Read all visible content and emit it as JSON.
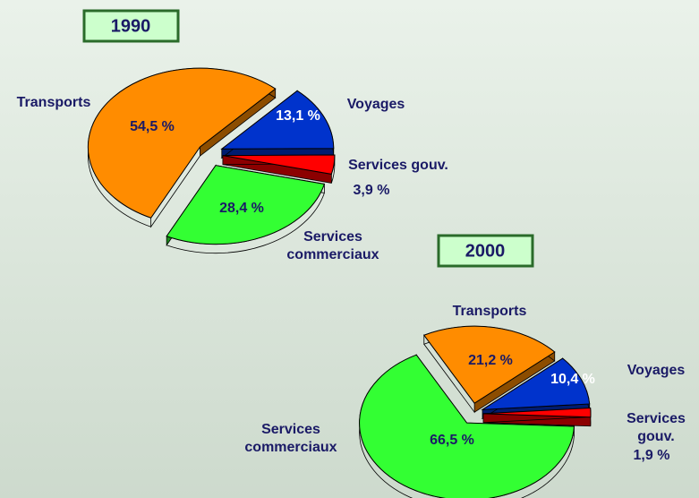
{
  "chart_data": [
    {
      "type": "pie",
      "title": "1990",
      "categories": [
        "Transports",
        "Voyages",
        "Services gouv.",
        "Services commerciaux"
      ],
      "values": [
        54.5,
        13.1,
        3.9,
        28.4
      ],
      "value_labels": [
        "54,5 %",
        "13,1 %",
        "3,9 %",
        "28,4 %"
      ],
      "colors": [
        "#ff8c00",
        "#0033cc",
        "#ff0000",
        "#33ff33"
      ]
    },
    {
      "type": "pie",
      "title": "2000",
      "categories": [
        "Transports",
        "Voyages",
        "Services gouv.",
        "Services commerciaux"
      ],
      "values": [
        21.2,
        10.4,
        1.9,
        66.5
      ],
      "value_labels": [
        "21,2 %",
        "10,4 %",
        "1,9 %",
        "66,5 %"
      ],
      "colors": [
        "#ff8c00",
        "#0033cc",
        "#ff0000",
        "#33ff33"
      ]
    }
  ]
}
